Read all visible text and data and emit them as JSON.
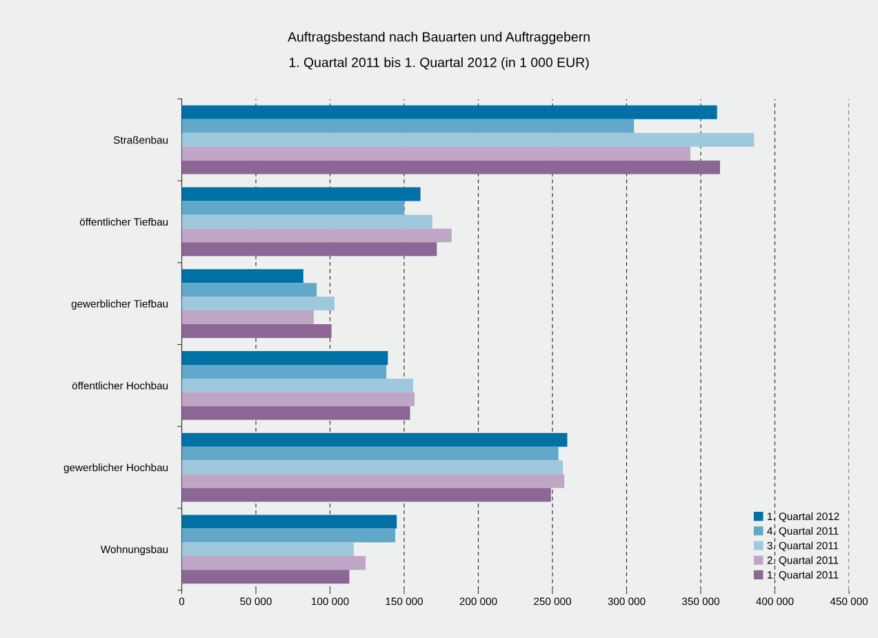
{
  "chart_data": {
    "type": "bar",
    "orientation": "horizontal",
    "title": "Auftragsbestand nach Bauarten und Auftraggebern",
    "subtitle": "1. Quartal 2011 bis 1. Quartal 2012 (in 1 000 EUR)",
    "categories": [
      "Straßenbau",
      "öffentlicher Tiefbau",
      "gewerblicher Tiefbau",
      "öffentlicher Hochbau",
      "gewerblicher Hochbau",
      "Wohnungsbau"
    ],
    "series": [
      {
        "name": "1. Quartal 2012",
        "color": "#0071a4",
        "values": [
          361000,
          161000,
          82000,
          139000,
          260000,
          145000
        ]
      },
      {
        "name": "4. Quartal 2011",
        "color": "#62a8c8",
        "values": [
          305000,
          150000,
          91000,
          138000,
          254000,
          144000
        ]
      },
      {
        "name": "3. Quartal 2011",
        "color": "#9dc8de",
        "values": [
          386000,
          169000,
          103000,
          156000,
          257000,
          116000
        ]
      },
      {
        "name": "2. Quartal 2011",
        "color": "#bea6c4",
        "values": [
          343000,
          182000,
          89000,
          157000,
          258000,
          124000
        ]
      },
      {
        "name": "1. Quartal 2011",
        "color": "#8c6795",
        "values": [
          363000,
          172000,
          101000,
          154000,
          249000,
          113000
        ]
      }
    ],
    "xlim": [
      0,
      450000
    ],
    "xticks": [
      0,
      {
        "value": 50000,
        "label": "50 000"
      },
      {
        "value": 100000,
        "label": "100 000"
      },
      {
        "value": 150000,
        "label": "150 000"
      },
      {
        "value": 200000,
        "label": "200 000"
      },
      {
        "value": 250000,
        "label": "250 000"
      },
      {
        "value": 300000,
        "label": "300 000"
      },
      {
        "value": 350000,
        "label": "350 000"
      },
      {
        "value": 400000,
        "label": "400 000"
      },
      {
        "value": 450000,
        "label": "450 000"
      }
    ],
    "grid": "x",
    "legend": "bottom right"
  }
}
